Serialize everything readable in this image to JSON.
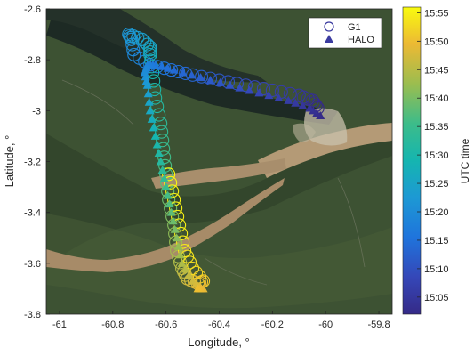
{
  "chart_data": {
    "type": "scatter",
    "xlabel": "Longitude, °",
    "ylabel": "Latitude, °",
    "xlim": [
      -61.05,
      -59.75
    ],
    "ylim": [
      -3.8,
      -2.6
    ],
    "xticks": [
      -61,
      -60.8,
      -60.6,
      -60.4,
      -60.2,
      -60,
      -59.8
    ],
    "yticks": [
      -3.8,
      -3.6,
      -3.4,
      -3.2,
      -3,
      -2.8,
      -2.6
    ],
    "xticklabels": [
      "-61",
      "-60.8",
      "-60.6",
      "-60.4",
      "-60.2",
      "-60",
      "-59.8"
    ],
    "yticklabels": [
      "-3.8",
      "-3.6",
      "-3.4",
      "-3.2",
      "-3",
      "-2.8",
      "-2.6"
    ],
    "background": "satellite map imagery (Amazon / Rio Negro confluence near Manaus)",
    "legend_position": "top-right",
    "legend": [
      {
        "name": "G1",
        "marker": "open-circle"
      },
      {
        "name": "HALO",
        "marker": "filled-triangle"
      }
    ],
    "colorbar": {
      "label": "UTC time",
      "colormap": "parula",
      "tick_labels": [
        "15:05",
        "15:10",
        "15:15",
        "15:20",
        "15:25",
        "15:30",
        "15:35",
        "15:40",
        "15:45",
        "15:50",
        "15:55"
      ],
      "range": [
        "15:02",
        "15:56"
      ]
    },
    "series": [
      {
        "name": "G1",
        "marker": "open-circle",
        "points": [
          {
            "x": -60.03,
            "y": -2.99,
            "t": "15:02"
          },
          {
            "x": -60.05,
            "y": -2.96,
            "t": "15:03"
          },
          {
            "x": -60.1,
            "y": -2.94,
            "t": "15:05"
          },
          {
            "x": -60.2,
            "y": -2.92,
            "t": "15:07"
          },
          {
            "x": -60.3,
            "y": -2.9,
            "t": "15:09"
          },
          {
            "x": -60.4,
            "y": -2.88,
            "t": "15:11"
          },
          {
            "x": -60.5,
            "y": -2.86,
            "t": "15:13"
          },
          {
            "x": -60.58,
            "y": -2.84,
            "t": "15:15"
          },
          {
            "x": -60.66,
            "y": -2.82,
            "t": "15:17"
          },
          {
            "x": -60.72,
            "y": -2.78,
            "t": "15:19"
          },
          {
            "x": -60.73,
            "y": -2.72,
            "t": "15:21"
          },
          {
            "x": -60.74,
            "y": -2.7,
            "t": "15:22"
          },
          {
            "x": -60.69,
            "y": -2.72,
            "t": "15:24"
          },
          {
            "x": -60.66,
            "y": -2.75,
            "t": "15:25"
          },
          {
            "x": -60.66,
            "y": -2.78,
            "t": "15:27"
          },
          {
            "x": -60.65,
            "y": -2.85,
            "t": "15:29"
          },
          {
            "x": -60.64,
            "y": -2.95,
            "t": "15:31"
          },
          {
            "x": -60.62,
            "y": -3.05,
            "t": "15:33"
          },
          {
            "x": -60.61,
            "y": -3.15,
            "t": "15:35"
          },
          {
            "x": -60.6,
            "y": -3.25,
            "t": "15:37"
          },
          {
            "x": -60.59,
            "y": -3.35,
            "t": "15:39"
          },
          {
            "x": -60.57,
            "y": -3.45,
            "t": "15:41"
          },
          {
            "x": -60.56,
            "y": -3.55,
            "t": "15:43"
          },
          {
            "x": -60.54,
            "y": -3.62,
            "t": "15:45"
          },
          {
            "x": -60.52,
            "y": -3.66,
            "t": "15:47"
          },
          {
            "x": -60.48,
            "y": -3.68,
            "t": "15:49"
          },
          {
            "x": -60.46,
            "y": -3.67,
            "t": "15:51"
          },
          {
            "x": -60.5,
            "y": -3.62,
            "t": "15:53"
          },
          {
            "x": -60.53,
            "y": -3.55,
            "t": "15:54"
          },
          {
            "x": -60.55,
            "y": -3.45,
            "t": "15:55"
          },
          {
            "x": -60.57,
            "y": -3.35,
            "t": "15:55"
          },
          {
            "x": -60.59,
            "y": -3.25,
            "t": "15:56"
          }
        ]
      },
      {
        "name": "HALO",
        "marker": "filled-triangle",
        "points": [
          {
            "x": -60.02,
            "y": -3.02,
            "t": "15:02"
          },
          {
            "x": -60.06,
            "y": -2.99,
            "t": "15:04"
          },
          {
            "x": -60.14,
            "y": -2.96,
            "t": "15:06"
          },
          {
            "x": -60.25,
            "y": -2.93,
            "t": "15:08"
          },
          {
            "x": -60.36,
            "y": -2.9,
            "t": "15:10"
          },
          {
            "x": -60.47,
            "y": -2.87,
            "t": "15:12"
          },
          {
            "x": -60.57,
            "y": -2.84,
            "t": "15:14"
          },
          {
            "x": -60.64,
            "y": -2.82,
            "t": "15:16"
          },
          {
            "x": -60.67,
            "y": -2.82,
            "t": "15:18"
          },
          {
            "x": -60.68,
            "y": -2.85,
            "t": "15:20"
          },
          {
            "x": -60.67,
            "y": -2.9,
            "t": "15:23"
          },
          {
            "x": -60.66,
            "y": -3.0,
            "t": "15:26"
          },
          {
            "x": -60.64,
            "y": -3.1,
            "t": "15:29"
          },
          {
            "x": -60.62,
            "y": -3.2,
            "t": "15:32"
          },
          {
            "x": -60.6,
            "y": -3.3,
            "t": "15:35"
          },
          {
            "x": -60.58,
            "y": -3.4,
            "t": "15:38"
          },
          {
            "x": -60.56,
            "y": -3.5,
            "t": "15:41"
          },
          {
            "x": -60.54,
            "y": -3.6,
            "t": "15:44"
          },
          {
            "x": -60.5,
            "y": -3.67,
            "t": "15:47"
          },
          {
            "x": -60.46,
            "y": -3.7,
            "t": "15:49"
          },
          {
            "x": -60.48,
            "y": -3.7,
            "t": "15:50"
          }
        ]
      }
    ]
  }
}
